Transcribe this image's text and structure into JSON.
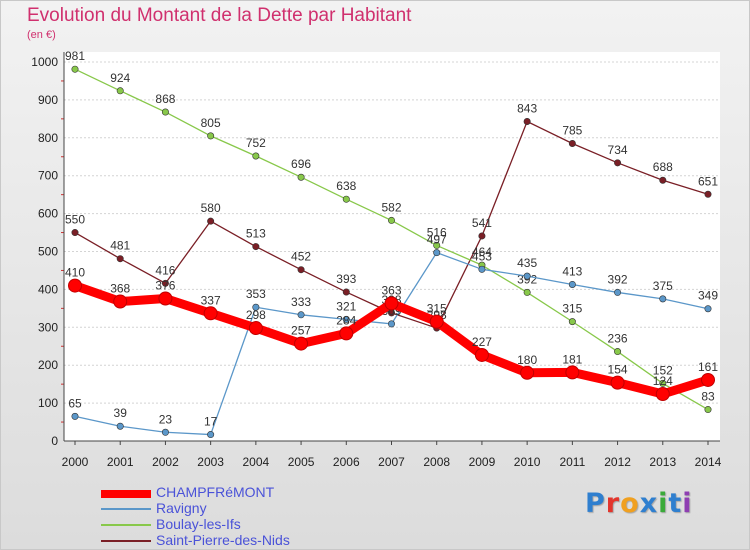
{
  "header": {
    "title": "Evolution du Montant de la Dette par Habitant",
    "unit": "(en €)"
  },
  "brand": {
    "letters": [
      "P",
      "r",
      "o",
      "x",
      "i",
      "t",
      "i"
    ],
    "colors": [
      "#2f7fcf",
      "#e3352c",
      "#f0a020",
      "#2f7fcf",
      "#3aaa3a",
      "#2f7fcf",
      "#8e3fb2"
    ]
  },
  "chart_data": {
    "type": "line",
    "title": "Evolution du Montant de la Dette par Habitant",
    "ylabel": "(en €)",
    "xlabel": "",
    "categories": [
      "2000",
      "2001",
      "2002",
      "2003",
      "2004",
      "2005",
      "2006",
      "2007",
      "2008",
      "2009",
      "2010",
      "2011",
      "2012",
      "2013",
      "2014"
    ],
    "ylim": [
      0,
      1000
    ],
    "yticks": [
      "0",
      "100",
      "200",
      "300",
      "400",
      "500",
      "600",
      "700",
      "800",
      "900",
      "1000"
    ],
    "series": [
      {
        "name": "Saint-Pierre-des-Nids",
        "color": "#7a1f26",
        "values": [
          550,
          481,
          416,
          580,
          513,
          452,
          393,
          338,
          298,
          541,
          843,
          785,
          734,
          688,
          651
        ],
        "labels": [
          "550",
          "481",
          "416",
          "580",
          "513",
          "452",
          "393",
          "338",
          "298",
          "541",
          "843",
          "785",
          "734",
          "688",
          "651"
        ]
      },
      {
        "name": "Boulay-les-Ifs",
        "color": "#88c84a",
        "values": [
          981,
          924,
          868,
          805,
          752,
          696,
          638,
          582,
          516,
          464,
          392,
          315,
          236,
          152,
          83
        ],
        "labels": [
          "981",
          "924",
          "868",
          "805",
          "752",
          "696",
          "638",
          "582",
          "516",
          "464",
          "392",
          "315",
          "236",
          "152",
          "83"
        ]
      },
      {
        "name": "Ravigny",
        "color": "#5b97c9",
        "values": [
          65,
          39,
          23,
          17,
          353,
          333,
          321,
          309,
          497,
          453,
          435,
          413,
          392,
          375,
          349
        ],
        "labels": [
          "65",
          "39",
          "23",
          "17",
          "353",
          "333",
          "321",
          "309",
          "497",
          "453",
          "435",
          "413",
          "392",
          "375",
          "349"
        ]
      },
      {
        "name": "CHAMPFRéMONT",
        "color": "#ff0000",
        "values": [
          410,
          368,
          376,
          337,
          298,
          257,
          284,
          363,
          315,
          227,
          180,
          181,
          154,
          124,
          161
        ],
        "labels": [
          "410",
          "368",
          "376",
          "337",
          "298",
          "257",
          "284",
          "363",
          "315",
          "227",
          "180",
          "181",
          "154",
          "124",
          "161"
        ]
      }
    ]
  },
  "legend": {
    "items": [
      {
        "label": "CHAMPFRéMONT",
        "color": "#ff0000"
      },
      {
        "label": "Ravigny",
        "color": "#5b97c9"
      },
      {
        "label": "Boulay-les-Ifs",
        "color": "#88c84a"
      },
      {
        "label": "Saint-Pierre-des-Nids",
        "color": "#7a1f26"
      }
    ]
  }
}
